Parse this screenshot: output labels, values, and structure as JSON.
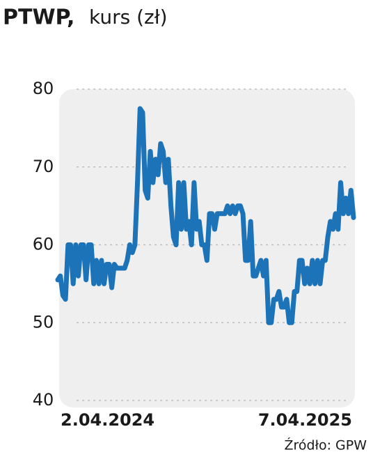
{
  "chart_data": {
    "type": "line",
    "title": "PTWP,",
    "subtitle": "kurs (zł)",
    "source": "Źródło: GPW",
    "categories": [
      "2.04.2024",
      null,
      null,
      null,
      null,
      null,
      null,
      null,
      null,
      null,
      null,
      null,
      null,
      null,
      null,
      null,
      null,
      null,
      null,
      null,
      null,
      null,
      null,
      null,
      null,
      null,
      null,
      null,
      null,
      null,
      null,
      null,
      null,
      null,
      null,
      null,
      null,
      null,
      null,
      null,
      null,
      null,
      null,
      null,
      null,
      null,
      null,
      null,
      null,
      null,
      null,
      null,
      null,
      null,
      null,
      null,
      null,
      null,
      null,
      null,
      null,
      null,
      null,
      null,
      null,
      null,
      null,
      null,
      null,
      null,
      null,
      null,
      null,
      null,
      null,
      null,
      null,
      null,
      null,
      null,
      null,
      null,
      null,
      null,
      null,
      null,
      null,
      null,
      null,
      null,
      null,
      null,
      null,
      null,
      null,
      null,
      null,
      null,
      null,
      null,
      null,
      null,
      null,
      null,
      null,
      null,
      null,
      null,
      null,
      null,
      null,
      null,
      null,
      null,
      null,
      "7.04.2025"
    ],
    "values": [
      55.5,
      56,
      53.5,
      53,
      60,
      60,
      55,
      60,
      56,
      60,
      60,
      55.5,
      60,
      60,
      55,
      58,
      55,
      58,
      55,
      57.5,
      57.5,
      54.5,
      57.5,
      57,
      57,
      57,
      57,
      58,
      60,
      59,
      60,
      68,
      77.5,
      77,
      67,
      66,
      72,
      68,
      71,
      69,
      73,
      72,
      68,
      71,
      65,
      61,
      60,
      68,
      62,
      68,
      62,
      63,
      60,
      68,
      62,
      63,
      60,
      60,
      58,
      64,
      64,
      62,
      64,
      64,
      64,
      64,
      65,
      64,
      65,
      64,
      65,
      65,
      64,
      58,
      58,
      63,
      56,
      56,
      57,
      58,
      56,
      58,
      50,
      50,
      53,
      53,
      54,
      52,
      52,
      53,
      50,
      50,
      54,
      54,
      58,
      58,
      55,
      57,
      55,
      58,
      55,
      58,
      55,
      58,
      58,
      61,
      63,
      62,
      64,
      62,
      68,
      64,
      66,
      64,
      67,
      63.5
    ],
    "color": "#1c73b8",
    "ylim": [
      40,
      80
    ],
    "yticks": [
      40,
      50,
      60,
      70,
      80
    ],
    "grid": true
  }
}
